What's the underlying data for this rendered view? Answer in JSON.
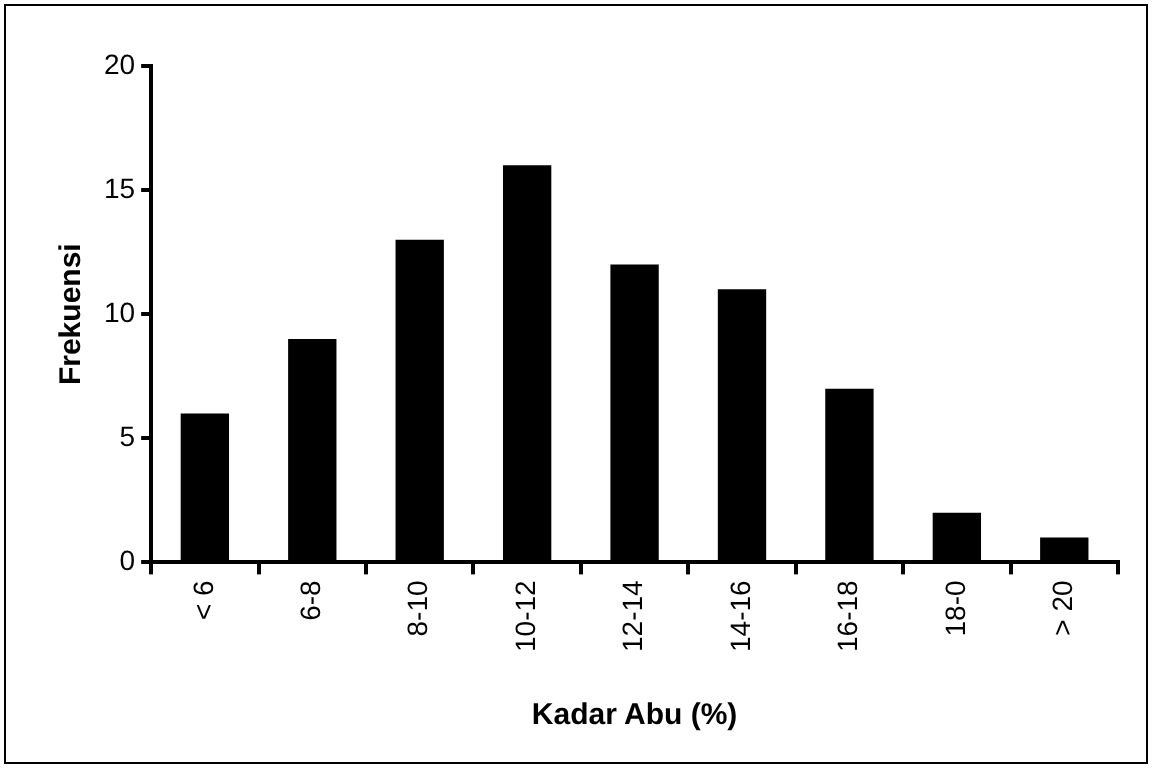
{
  "chart_data": {
    "type": "bar",
    "categories": [
      "< 6",
      "6-8",
      "8-10",
      "10-12",
      "12-14",
      "14-16",
      "16-18",
      "18-0",
      "> 20"
    ],
    "values": [
      6,
      9,
      13,
      16,
      12,
      11,
      7,
      2,
      1
    ],
    "color": "#000000",
    "xlabel": "Kadar Abu (%)",
    "ylabel": "Frekuensi",
    "ylim": [
      0,
      20
    ],
    "yticks": [
      0,
      5,
      10,
      15,
      20
    ],
    "grid": false,
    "legend": false
  }
}
